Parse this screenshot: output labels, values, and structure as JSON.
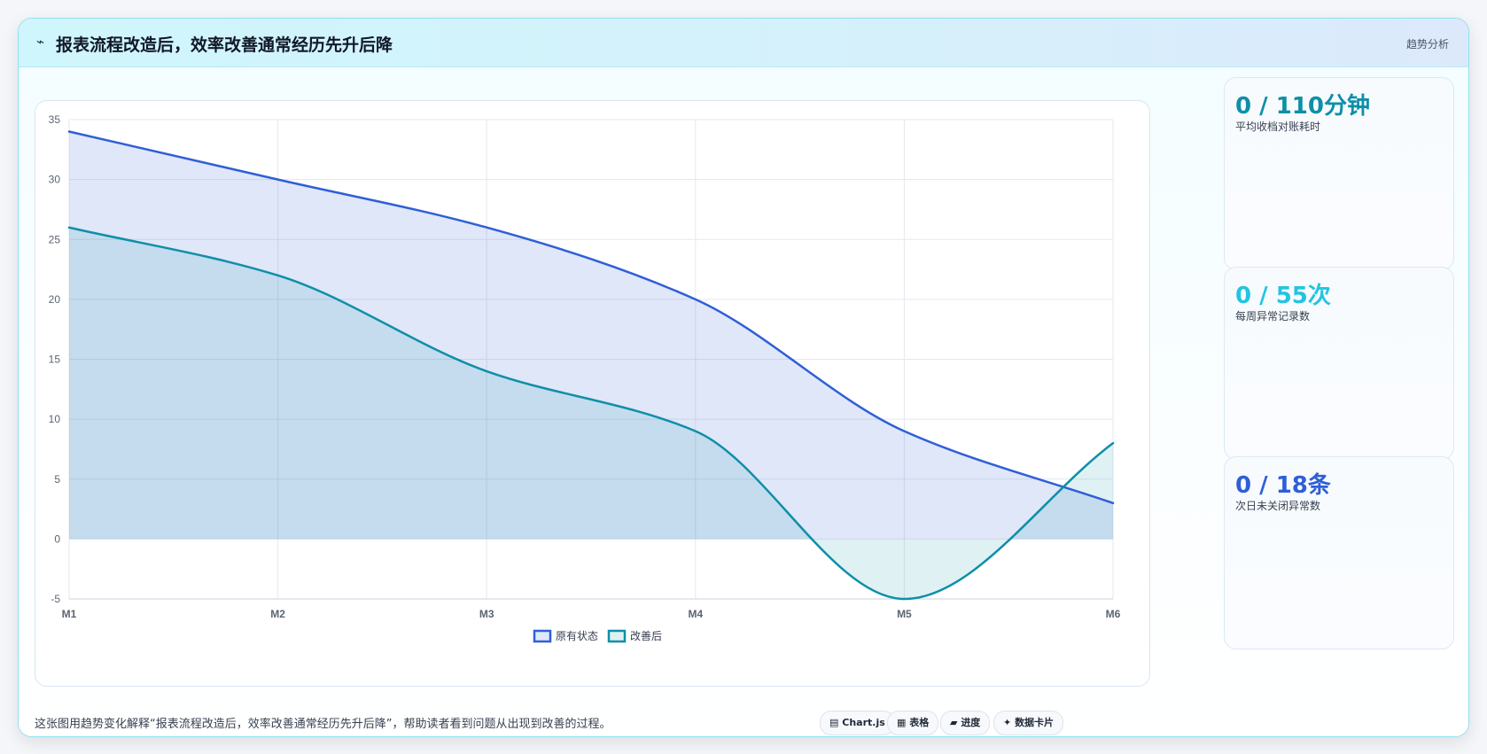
{
  "header": {
    "icon": "⌁",
    "title": "报表流程改造后，效率改善通常经历先升后降",
    "tag": "趋势分析"
  },
  "kpis": [
    {
      "value": "0 / 110分钟",
      "label": "平均收档对账耗时",
      "color": "#0e8fa8"
    },
    {
      "value": "0 / 55次",
      "label": "每周异常记录数",
      "color": "#22c5e0"
    },
    {
      "value": "0 / 18条",
      "label": "次日未关闭异常数",
      "color": "#2f5fd7"
    }
  ],
  "footer": {
    "note": "这张图用趋势变化解释“报表流程改造后，效率改善通常经历先升后降”，帮助读者看到问题从出现到改善的过程。",
    "chips": [
      {
        "icon": "▤",
        "label": "Chart.js"
      },
      {
        "icon": "▦",
        "label": "表格"
      },
      {
        "icon": "▰",
        "label": "进度"
      },
      {
        "icon": "✦",
        "label": "数据卡片"
      }
    ]
  },
  "chart_data": {
    "type": "line",
    "categories": [
      "M1",
      "M2",
      "M3",
      "M4",
      "M5",
      "M6"
    ],
    "ylim": [
      -5,
      35
    ],
    "yticks": [
      -5,
      0,
      5,
      10,
      15,
      20,
      25,
      30,
      35
    ],
    "grid": true,
    "legend_position": "bottom",
    "series": [
      {
        "name": "原有状态",
        "values": [
          34,
          30,
          26,
          20,
          9,
          3
        ],
        "color": "#2f5fd7",
        "fill": "rgba(47,95,215,0.15)"
      },
      {
        "name": "改善后",
        "values": [
          26,
          22,
          14,
          9,
          -5,
          8
        ],
        "color": "#0e8fa8",
        "fill": "rgba(14,143,168,0.13)"
      }
    ]
  }
}
